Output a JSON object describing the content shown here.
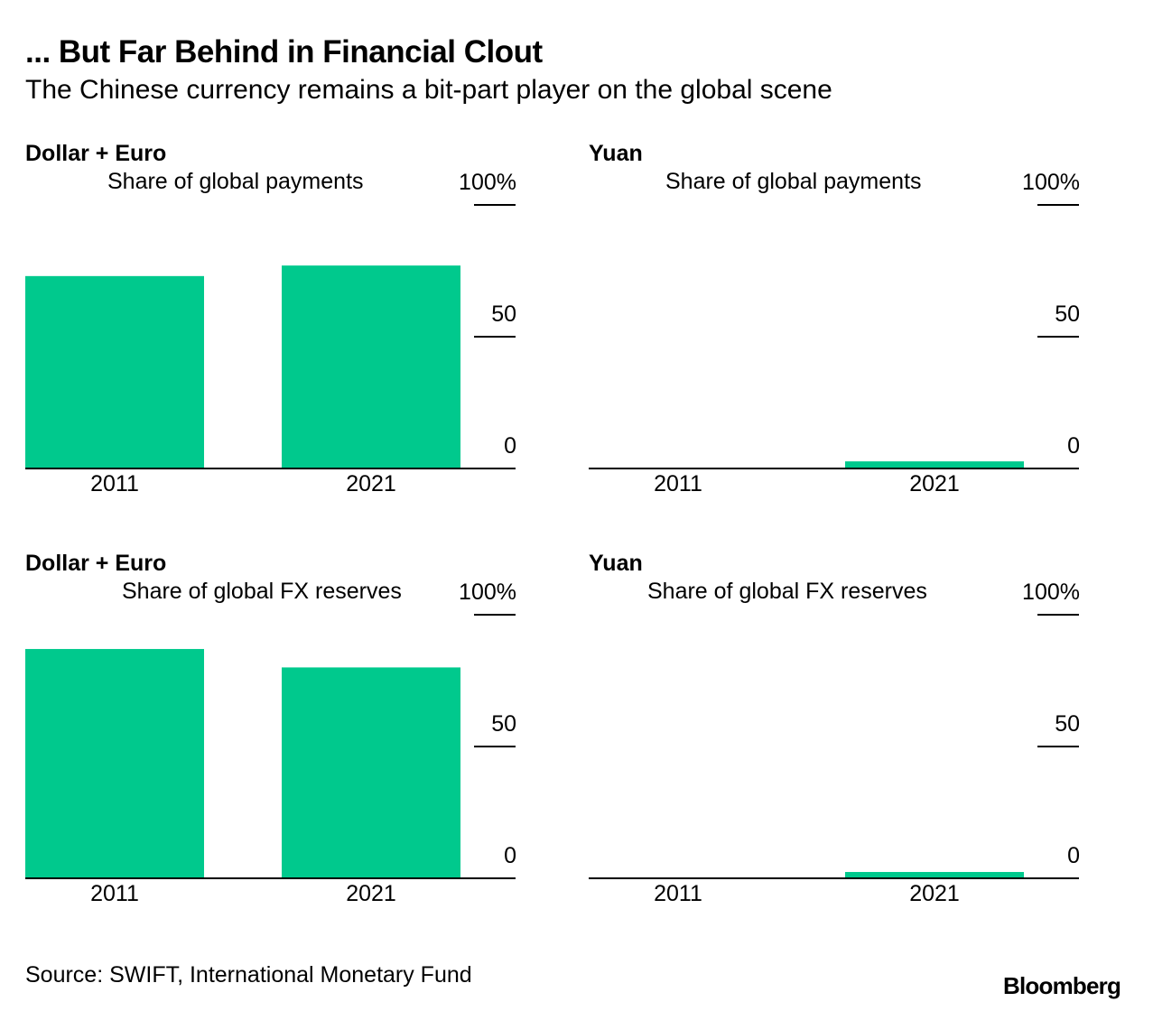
{
  "header": {
    "title": "... But Far Behind in Financial Clout",
    "subtitle": "The Chinese currency remains a bit-part player on the global scene"
  },
  "chart_data": [
    {
      "type": "bar",
      "title": "Dollar + Euro",
      "subtitle": "Share of global payments",
      "categories": [
        "2011",
        "2021"
      ],
      "values": [
        73,
        77
      ],
      "ylim": [
        0,
        100
      ],
      "yticks": [
        0,
        50,
        100
      ],
      "ytick_labels": [
        "0",
        "50",
        "100%"
      ],
      "color": "#00c98d"
    },
    {
      "type": "bar",
      "title": "Yuan",
      "subtitle": "Share of global payments",
      "categories": [
        "2011",
        "2021"
      ],
      "values": [
        0.3,
        2.7
      ],
      "ylim": [
        0,
        100
      ],
      "yticks": [
        0,
        50,
        100
      ],
      "ytick_labels": [
        "0",
        "50",
        "100%"
      ],
      "color": "#00c98d"
    },
    {
      "type": "bar",
      "title": "Dollar + Euro",
      "subtitle": "Share of global FX reserves",
      "categories": [
        "2011",
        "2021"
      ],
      "values": [
        87,
        80
      ],
      "ylim": [
        0,
        100
      ],
      "yticks": [
        0,
        50,
        100
      ],
      "ytick_labels": [
        "0",
        "50",
        "100%"
      ],
      "color": "#00c98d"
    },
    {
      "type": "bar",
      "title": "Yuan",
      "subtitle": "Share of global FX reserves",
      "categories": [
        "2011",
        "2021"
      ],
      "values": [
        0.3,
        2.4
      ],
      "ylim": [
        0,
        100
      ],
      "yticks": [
        0,
        50,
        100
      ],
      "ytick_labels": [
        "0",
        "50",
        "100%"
      ],
      "color": "#00c98d"
    }
  ],
  "footer": {
    "source": "Source: SWIFT, International Monetary Fund",
    "brand": "Bloomberg"
  }
}
